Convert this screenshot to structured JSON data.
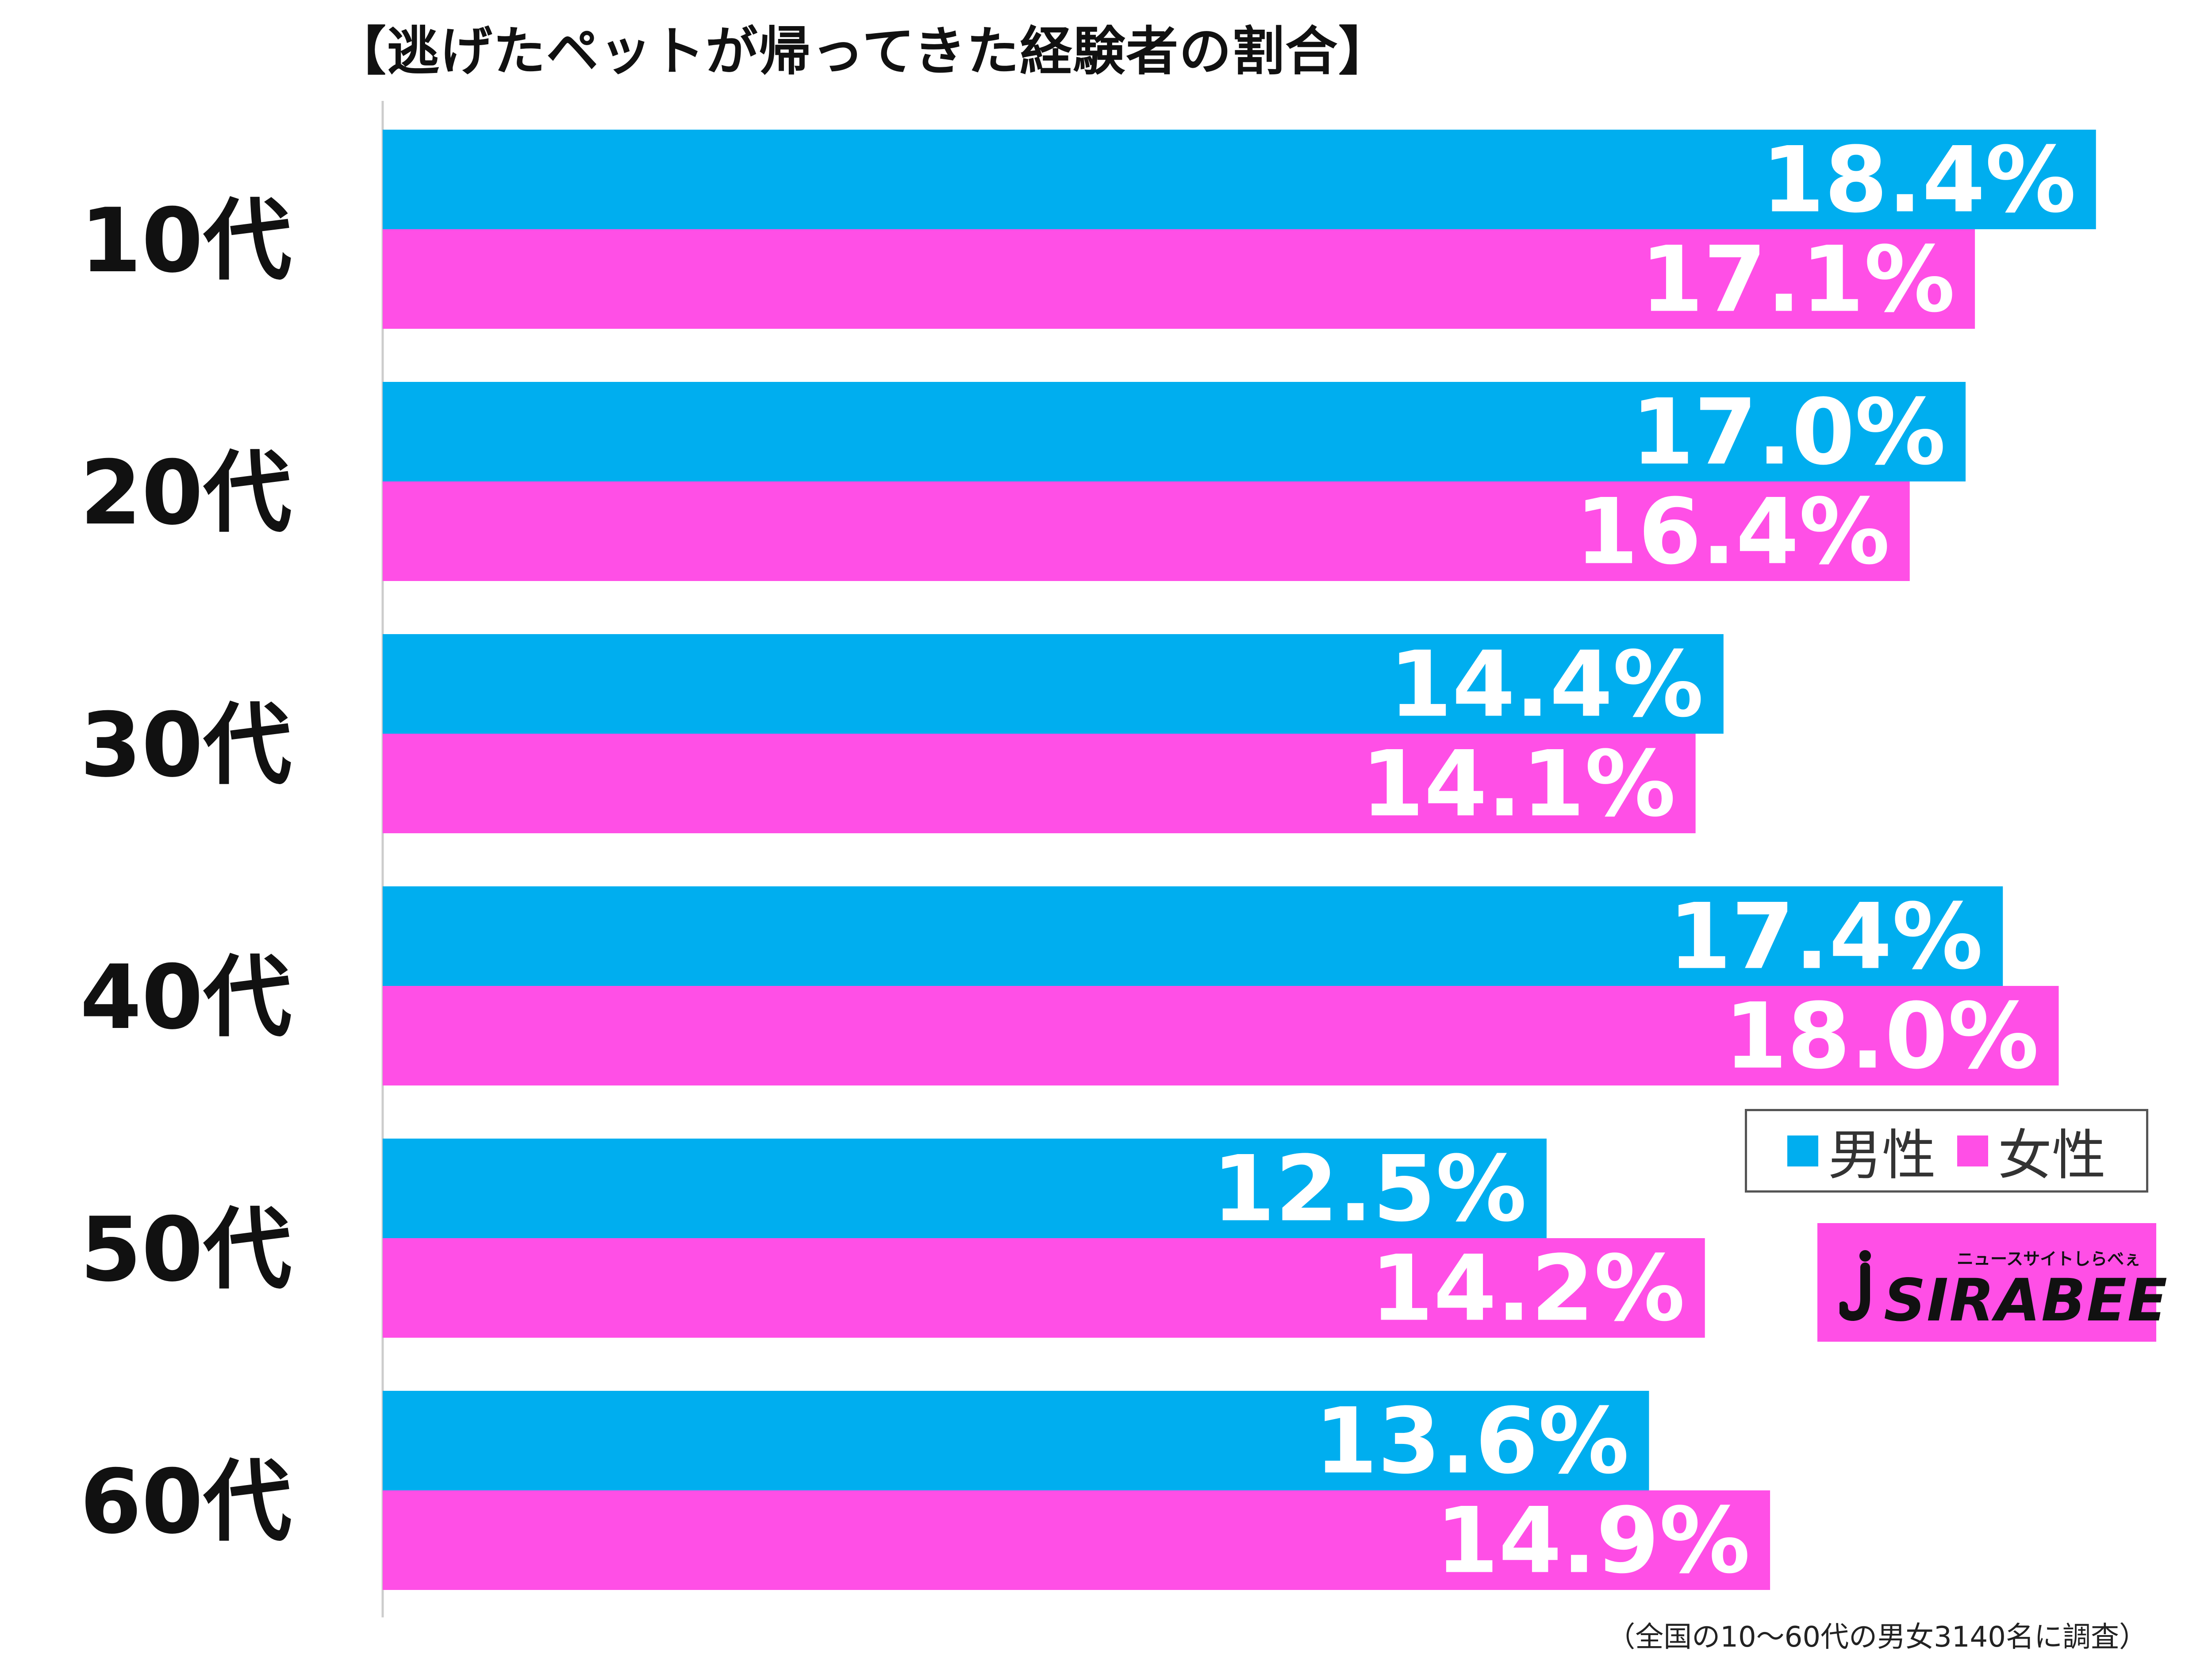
{
  "chart_data": {
    "type": "bar",
    "orientation": "horizontal",
    "title": "【逃げたペットが帰ってきた経験者の割合】",
    "categories": [
      "10代",
      "20代",
      "30代",
      "40代",
      "50代",
      "60代"
    ],
    "series": [
      {
        "name": "男性",
        "color": "#00aeef",
        "values": [
          18.4,
          17.0,
          14.4,
          17.4,
          12.5,
          13.6
        ],
        "labels": [
          "18.4%",
          "17.0%",
          "14.4%",
          "17.4%",
          "12.5%",
          "13.6%"
        ]
      },
      {
        "name": "女性",
        "color": "#ff4fe6",
        "values": [
          17.1,
          16.4,
          14.1,
          18.0,
          14.2,
          14.9
        ],
        "labels": [
          "17.1%",
          "16.4%",
          "14.1%",
          "18.0%",
          "14.2%",
          "14.9%"
        ]
      }
    ],
    "xlim": [
      0,
      19
    ],
    "grid": false,
    "legend_position": "bottom-right"
  },
  "logo": {
    "text": "SIRABEE",
    "subtext": "ニュースサイトしらべぇ"
  },
  "footnote": "（全国の10〜60代の男女3140名に調査）",
  "colors": {
    "male": "#00aeef",
    "female": "#ff4fe6",
    "axis": "#cccccc"
  }
}
